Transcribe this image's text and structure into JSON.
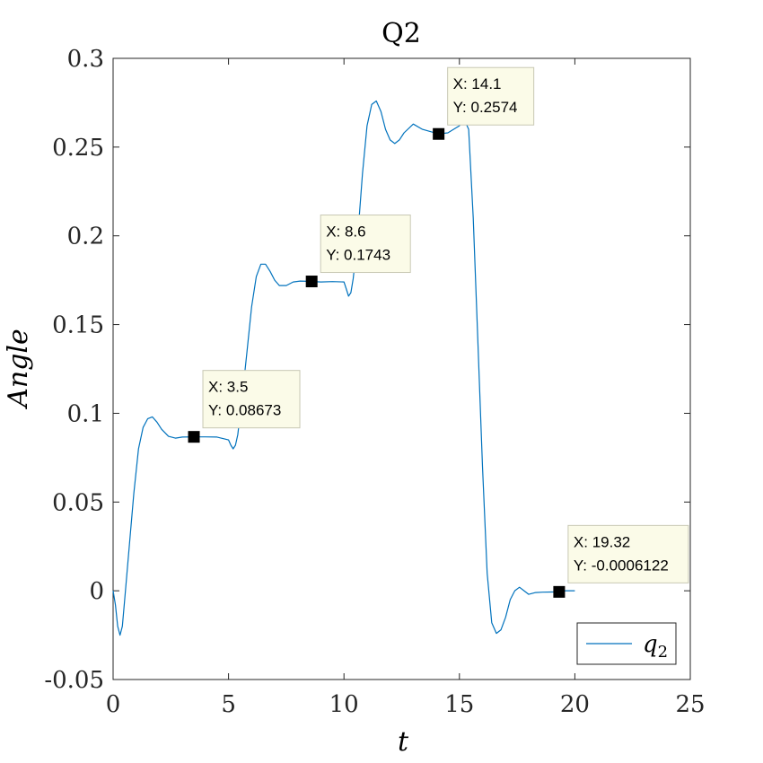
{
  "chart_data": {
    "type": "line",
    "title": "Q2",
    "xlabel": "t",
    "ylabel": "Angle",
    "xlim": [
      0,
      25
    ],
    "ylim": [
      -0.05,
      0.3
    ],
    "xticks": [
      0,
      5,
      10,
      15,
      20,
      25
    ],
    "xtick_labels": [
      "0",
      "5",
      "10",
      "15",
      "20",
      "25"
    ],
    "yticks": [
      -0.05,
      0,
      0.05,
      0.1,
      0.15,
      0.2,
      0.25,
      0.3
    ],
    "ytick_labels": [
      "-0.05",
      "0",
      "0.05",
      "0.1",
      "0.15",
      "0.2",
      "0.25",
      "0.3"
    ],
    "grid": false,
    "legend": {
      "position": "bottom-right",
      "entries": [
        {
          "base": "q",
          "sub": "2"
        }
      ]
    },
    "series": [
      {
        "name": "q2",
        "color": "#0072BD",
        "x": [
          0,
          0.1,
          0.2,
          0.3,
          0.4,
          0.5,
          0.7,
          0.9,
          1.1,
          1.3,
          1.5,
          1.7,
          1.9,
          2.1,
          2.4,
          2.7,
          3.0,
          3.5,
          4.0,
          4.5,
          5.0,
          5.1,
          5.2,
          5.3,
          5.4,
          5.6,
          5.8,
          6.0,
          6.2,
          6.4,
          6.6,
          6.8,
          7.0,
          7.2,
          7.5,
          7.8,
          8.1,
          8.6,
          9.0,
          9.5,
          10.0,
          10.1,
          10.2,
          10.3,
          10.4,
          10.6,
          10.8,
          11.0,
          11.2,
          11.4,
          11.6,
          11.8,
          12.0,
          12.2,
          12.4,
          12.6,
          13.0,
          13.4,
          14.1,
          14.5,
          15.0,
          15.2,
          15.4,
          15.6,
          15.8,
          16.0,
          16.2,
          16.4,
          16.6,
          16.8,
          17.0,
          17.2,
          17.4,
          17.6,
          17.8,
          18.0,
          18.3,
          18.6,
          19.0,
          19.32,
          19.6,
          20.0
        ],
        "y": [
          0.0,
          -0.008,
          -0.02,
          -0.025,
          -0.02,
          -0.005,
          0.025,
          0.055,
          0.08,
          0.092,
          0.097,
          0.098,
          0.095,
          0.091,
          0.087,
          0.086,
          0.0866,
          0.08673,
          0.0867,
          0.0866,
          0.085,
          0.082,
          0.08,
          0.082,
          0.088,
          0.11,
          0.135,
          0.16,
          0.177,
          0.184,
          0.184,
          0.18,
          0.175,
          0.172,
          0.172,
          0.174,
          0.1745,
          0.1743,
          0.174,
          0.1742,
          0.174,
          0.17,
          0.166,
          0.168,
          0.176,
          0.2,
          0.235,
          0.262,
          0.274,
          0.276,
          0.27,
          0.26,
          0.254,
          0.252,
          0.254,
          0.258,
          0.263,
          0.26,
          0.2574,
          0.258,
          0.262,
          0.266,
          0.26,
          0.21,
          0.14,
          0.07,
          0.01,
          -0.018,
          -0.024,
          -0.022,
          -0.015,
          -0.005,
          0.0,
          0.002,
          0.0,
          -0.002,
          -0.001,
          -0.0008,
          -0.0007,
          -0.0006122,
          0.0,
          0.0
        ]
      }
    ],
    "datatips": [
      {
        "x": 3.5,
        "y": 0.08673,
        "x_text": "X: 3.5",
        "y_text": "Y: 0.08673"
      },
      {
        "x": 8.6,
        "y": 0.1743,
        "x_text": "X: 8.6",
        "y_text": "Y: 0.1743"
      },
      {
        "x": 14.1,
        "y": 0.2574,
        "x_text": "X: 14.1",
        "y_text": "Y: 0.2574"
      },
      {
        "x": 19.32,
        "y": -0.0006122,
        "x_text": "X: 19.32",
        "y_text": "Y: -0.0006122"
      }
    ],
    "colors": {
      "line": "#0072BD",
      "tip_fill": "#FBFBE8",
      "tip_border": "#C8C8B4",
      "marker": "#000000"
    }
  }
}
